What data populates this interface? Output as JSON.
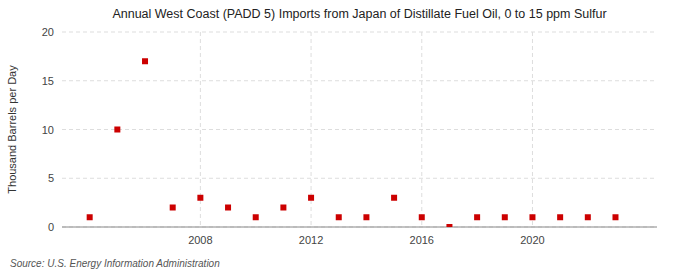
{
  "chart_data": {
    "type": "scatter",
    "title": "Annual West Coast (PADD 5) Imports from Japan of Distillate Fuel Oil, 0 to 15 ppm Sulfur",
    "y_label": "Thousand Barrels per Day",
    "annotations": [
      "Source: U.S. Energy Information Administration"
    ],
    "x": [
      2004,
      2005,
      2006,
      2007,
      2008,
      2009,
      2010,
      2011,
      2012,
      2013,
      2014,
      2015,
      2016,
      2017,
      2018,
      2019,
      2020,
      2021,
      2022,
      2023
    ],
    "values": [
      1,
      10,
      17,
      2,
      3,
      2,
      1,
      2,
      3,
      1,
      1,
      3,
      1,
      0,
      1,
      1,
      1,
      1,
      1,
      1
    ],
    "color": "#cc0000",
    "marker": "square",
    "xlim": [
      2003,
      2024.5
    ],
    "xticks": [
      2008,
      2012,
      2016,
      2020
    ],
    "ylim": [
      0,
      20
    ],
    "yticks": [
      0,
      5,
      10,
      15,
      20
    ],
    "grid": true
  }
}
